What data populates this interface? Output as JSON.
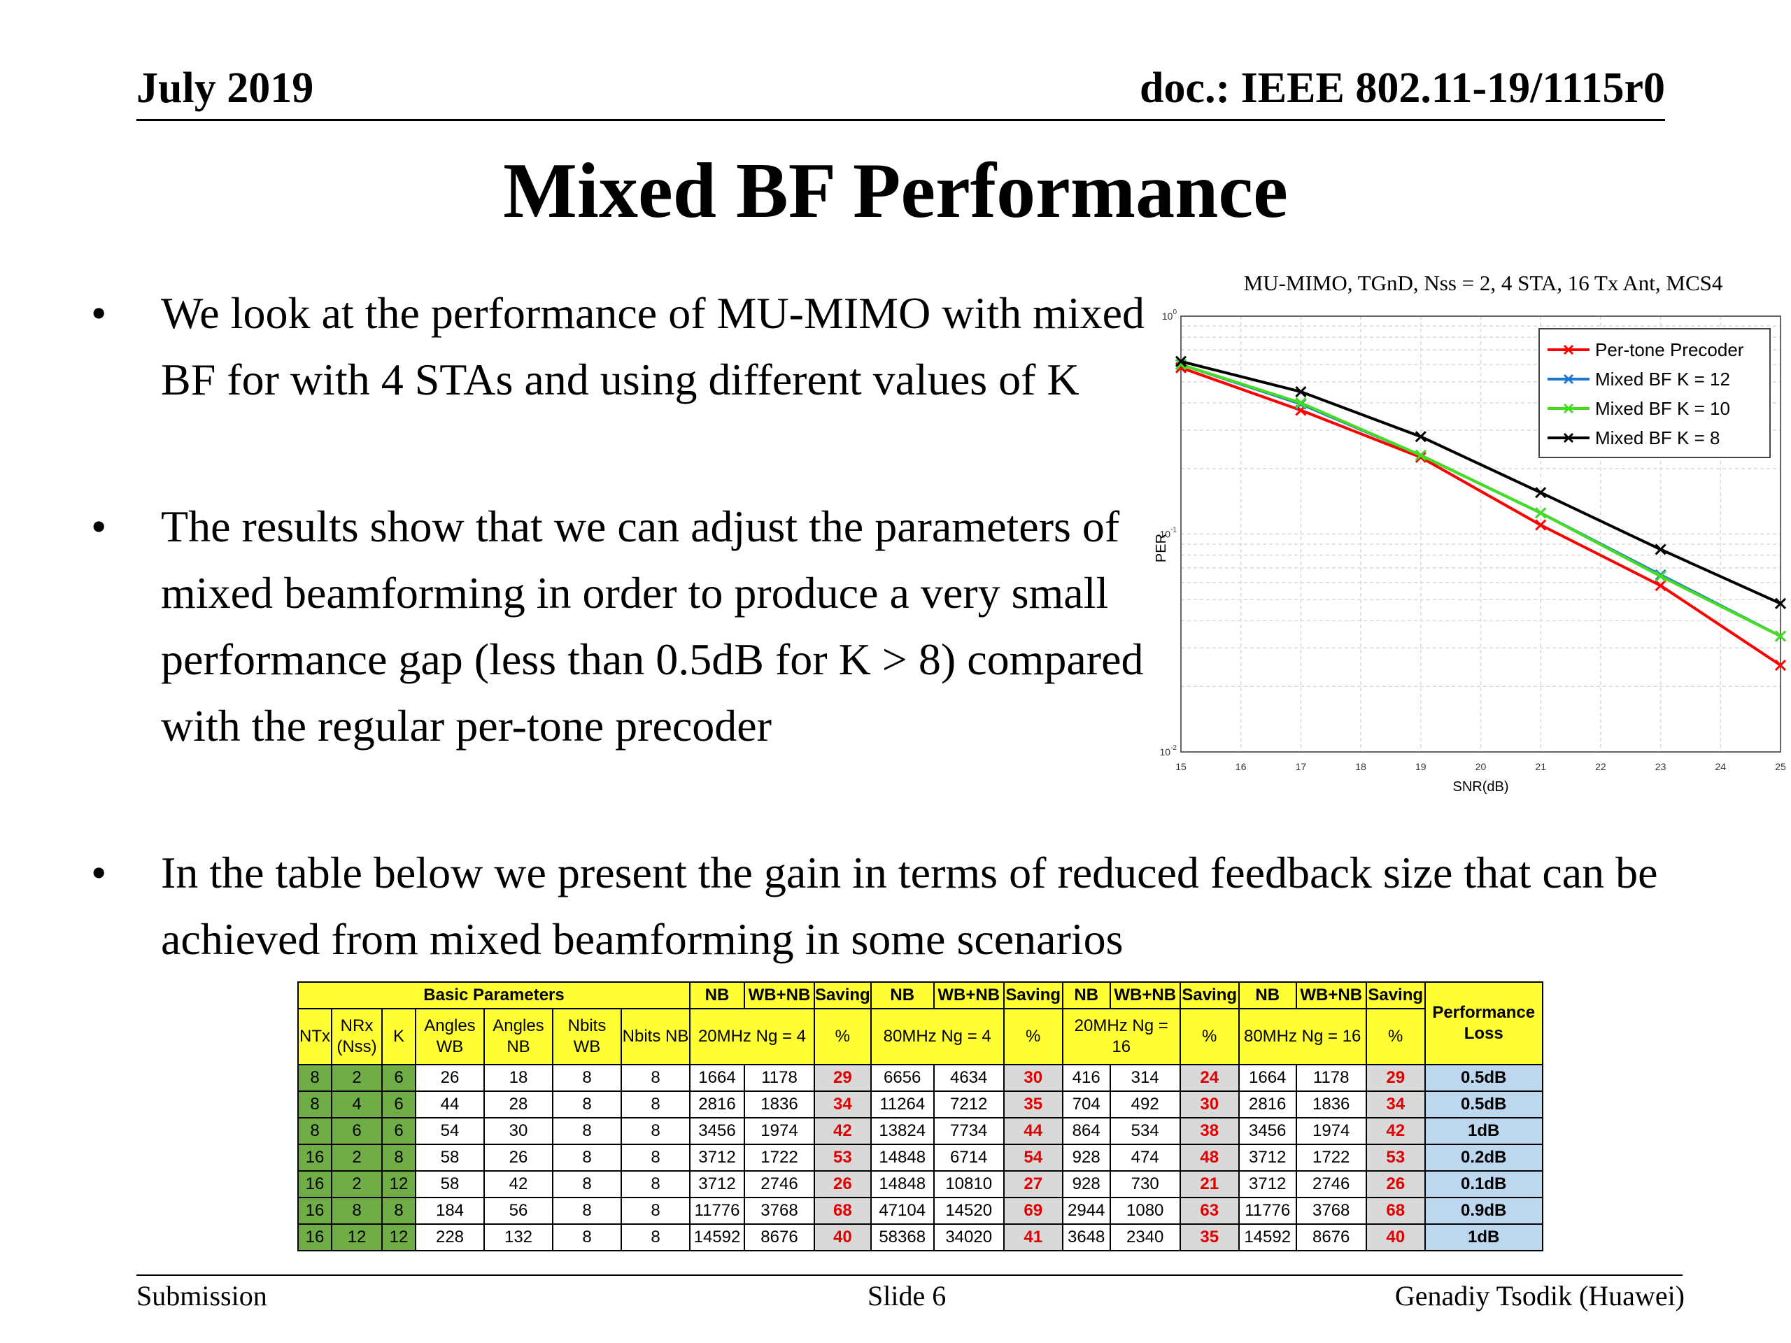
{
  "header": {
    "date": "July 2019",
    "doc": "doc.: IEEE 802.11-19/1115r0"
  },
  "title": "Mixed BF Performance",
  "bullets": [
    "We look at the performance of MU-MIMO with mixed BF for with 4 STAs and using different values of K",
    "The results show that we can adjust the parameters of mixed beamforming in order to produce a very small performance gap (less than 0.5dB for K > 8) compared with the regular per-tone precoder",
    "In the table below we present the gain in terms of reduced feedback size that can be achieved from mixed beamforming in some scenarios"
  ],
  "bullet_symbol": "•",
  "chart_data": {
    "type": "line",
    "title": "MU-MIMO, TGnD, Nss = 2, 4 STA, 16 Tx Ant, MCS4",
    "xlabel": "SNR(dB)",
    "ylabel": "PER",
    "xlim": [
      15,
      25
    ],
    "ylim": [
      0.01,
      1
    ],
    "yscale": "log",
    "grid": true,
    "legend": "top-right",
    "xticks": [
      "15",
      "16",
      "17",
      "18",
      "19",
      "20",
      "21",
      "22",
      "23",
      "24",
      "25"
    ],
    "yticks": [
      {
        "base": "10",
        "exp": "0"
      },
      {
        "base": "10",
        "exp": "-1"
      },
      {
        "base": "10",
        "exp": "-2"
      }
    ],
    "series": [
      {
        "name": "Per-tone Precoder",
        "color": "#ff0000",
        "x": [
          15,
          17,
          19,
          21,
          23,
          25
        ],
        "y": [
          0.58,
          0.37,
          0.225,
          0.11,
          0.058,
          0.025
        ]
      },
      {
        "name": "Mixed BF K = 12",
        "color": "#1f77d4",
        "x": [
          15,
          17,
          19,
          21,
          23,
          25
        ],
        "y": [
          0.6,
          0.395,
          0.23,
          0.125,
          0.065,
          0.034
        ]
      },
      {
        "name": "Mixed BF K = 10",
        "color": "#44dd22",
        "x": [
          15,
          17,
          19,
          21,
          23,
          25
        ],
        "y": [
          0.6,
          0.4,
          0.23,
          0.125,
          0.064,
          0.034
        ]
      },
      {
        "name": "Mixed BF K = 8",
        "color": "#000000",
        "x": [
          15,
          17,
          19,
          21,
          23,
          25
        ],
        "y": [
          0.62,
          0.45,
          0.28,
          0.155,
          0.085,
          0.048
        ]
      }
    ]
  },
  "table": {
    "basic_params": "Basic Parameters",
    "col_nb": "NB",
    "col_wbnb": "WB+NB",
    "col_saving": "Saving",
    "perf_loss": "Performance Loss",
    "sub_headers": [
      "NTx",
      "NRx (Nss)",
      "K",
      "Angles WB",
      "Angles NB",
      "Nbits WB",
      "Nbits NB"
    ],
    "bw_labels": [
      "20MHz Ng = 4",
      "80MHz Ng = 4",
      "20MHz Ng = 16",
      "80MHz Ng = 16"
    ],
    "pct": "%",
    "rows": [
      [
        "8",
        "2",
        "6",
        "26",
        "18",
        "8",
        "8",
        "1664",
        "1178",
        "29",
        "6656",
        "4634",
        "30",
        "416",
        "314",
        "24",
        "1664",
        "1178",
        "29",
        "0.5dB"
      ],
      [
        "8",
        "4",
        "6",
        "44",
        "28",
        "8",
        "8",
        "2816",
        "1836",
        "34",
        "11264",
        "7212",
        "35",
        "704",
        "492",
        "30",
        "2816",
        "1836",
        "34",
        "0.5dB"
      ],
      [
        "8",
        "6",
        "6",
        "54",
        "30",
        "8",
        "8",
        "3456",
        "1974",
        "42",
        "13824",
        "7734",
        "44",
        "864",
        "534",
        "38",
        "3456",
        "1974",
        "42",
        "1dB"
      ],
      [
        "16",
        "2",
        "8",
        "58",
        "26",
        "8",
        "8",
        "3712",
        "1722",
        "53",
        "14848",
        "6714",
        "54",
        "928",
        "474",
        "48",
        "3712",
        "1722",
        "53",
        "0.2dB"
      ],
      [
        "16",
        "2",
        "12",
        "58",
        "42",
        "8",
        "8",
        "3712",
        "2746",
        "26",
        "14848",
        "10810",
        "27",
        "928",
        "730",
        "21",
        "3712",
        "2746",
        "26",
        "0.1dB"
      ],
      [
        "16",
        "8",
        "8",
        "184",
        "56",
        "8",
        "8",
        "11776",
        "3768",
        "68",
        "47104",
        "14520",
        "69",
        "2944",
        "1080",
        "63",
        "11776",
        "3768",
        "68",
        "0.9dB"
      ],
      [
        "16",
        "12",
        "12",
        "228",
        "132",
        "8",
        "8",
        "14592",
        "8676",
        "40",
        "58368",
        "34020",
        "41",
        "3648",
        "2340",
        "35",
        "14592",
        "8676",
        "40",
        "1dB"
      ]
    ]
  },
  "footer": {
    "left": "Submission",
    "center": "Slide 6",
    "right": "Genadiy Tsodik (Huawei)"
  }
}
